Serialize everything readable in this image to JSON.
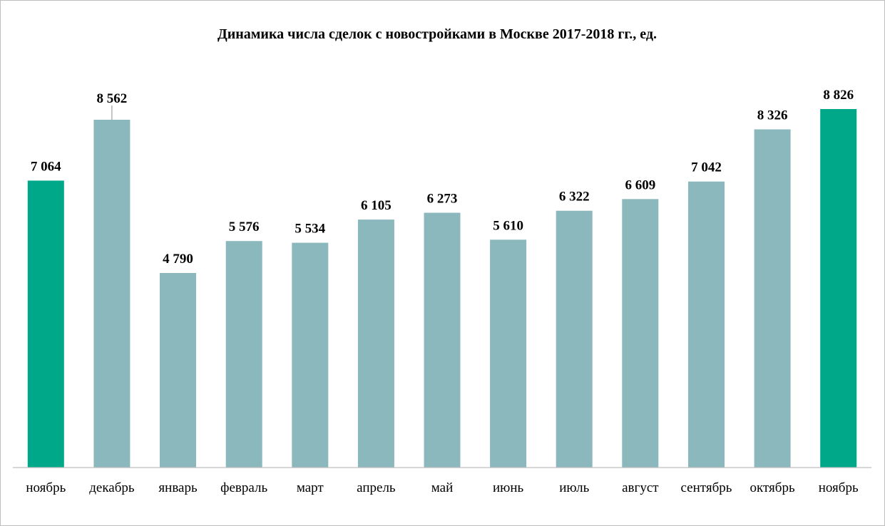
{
  "chart_data": {
    "type": "bar",
    "title": "Динамика числа сделок с новостройками в Москве 2017-2018 гг., ед.",
    "xlabel": "",
    "ylabel": "",
    "categories": [
      "ноябрь",
      "декабрь",
      "январь",
      "февраль",
      "март",
      "апрель",
      "май",
      "июнь",
      "июль",
      "август",
      "сентябрь",
      "октябрь",
      "ноябрь"
    ],
    "values": [
      7064,
      8562,
      4790,
      5576,
      5534,
      6105,
      6273,
      5610,
      6322,
      6609,
      7042,
      8326,
      8826
    ],
    "data_labels": [
      "7 064",
      "8 562",
      "4 790",
      "5 576",
      "5 534",
      "6 105",
      "6 273",
      "5 610",
      "6 322",
      "6 609",
      "7 042",
      "8 326",
      "8 826"
    ],
    "highlighted": [
      true,
      false,
      false,
      false,
      false,
      false,
      false,
      false,
      false,
      false,
      false,
      false,
      true
    ],
    "ylim": [
      0,
      8826
    ],
    "grid": false,
    "legend": "none",
    "colors": {
      "bar": "#8bb8bd",
      "highlight": "#00a88a",
      "axis": "#bfbfbf",
      "text": "#000000"
    }
  }
}
